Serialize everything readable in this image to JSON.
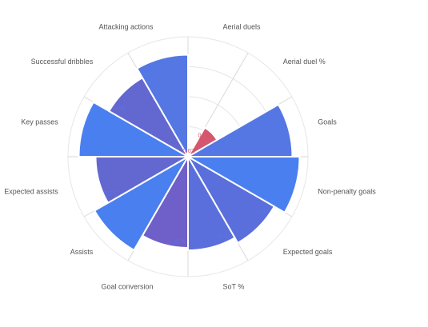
{
  "chart_data": {
    "type": "polar-bar",
    "title": "",
    "categories": [
      "Aerial duels",
      "Aerial duel %",
      "Goals",
      "Non-penalty goals",
      "Expected goals",
      "SoT %",
      "Goal conversion",
      "Assists",
      "Expected assists",
      "Key passes",
      "Successful dribbles",
      "Attacking actions"
    ],
    "values": [
      0.02,
      0.28,
      0.87,
      0.93,
      0.83,
      0.78,
      0.76,
      0.9,
      0.77,
      0.91,
      0.76,
      0.85
    ],
    "value_labels": [
      "0.02",
      "0.28",
      "0.87",
      "0.93",
      "0.83",
      "0.78",
      "0.76",
      "0.90",
      "0.77",
      "0.91",
      "0.76",
      "0.85"
    ],
    "colors": [
      "#e0566a",
      "#d4566f",
      "#5577e3",
      "#4a7ff0",
      "#5a6fdc",
      "#5a6fdc",
      "#6f5fc8",
      "#4a7ff0",
      "#6368d0",
      "#4a7ff0",
      "#6368d0",
      "#5577e3"
    ],
    "label_colors": [
      "#e0566a",
      "#d4566f",
      "#5577e3",
      "#4a7ff0",
      "#5577e3",
      "#5577e3",
      "#5577e3",
      "#4a7ff0",
      "#5577e3",
      "#4a7ff0",
      "#5577e3",
      "#5577e3"
    ],
    "rlim": [
      0,
      1
    ],
    "grid": true
  }
}
